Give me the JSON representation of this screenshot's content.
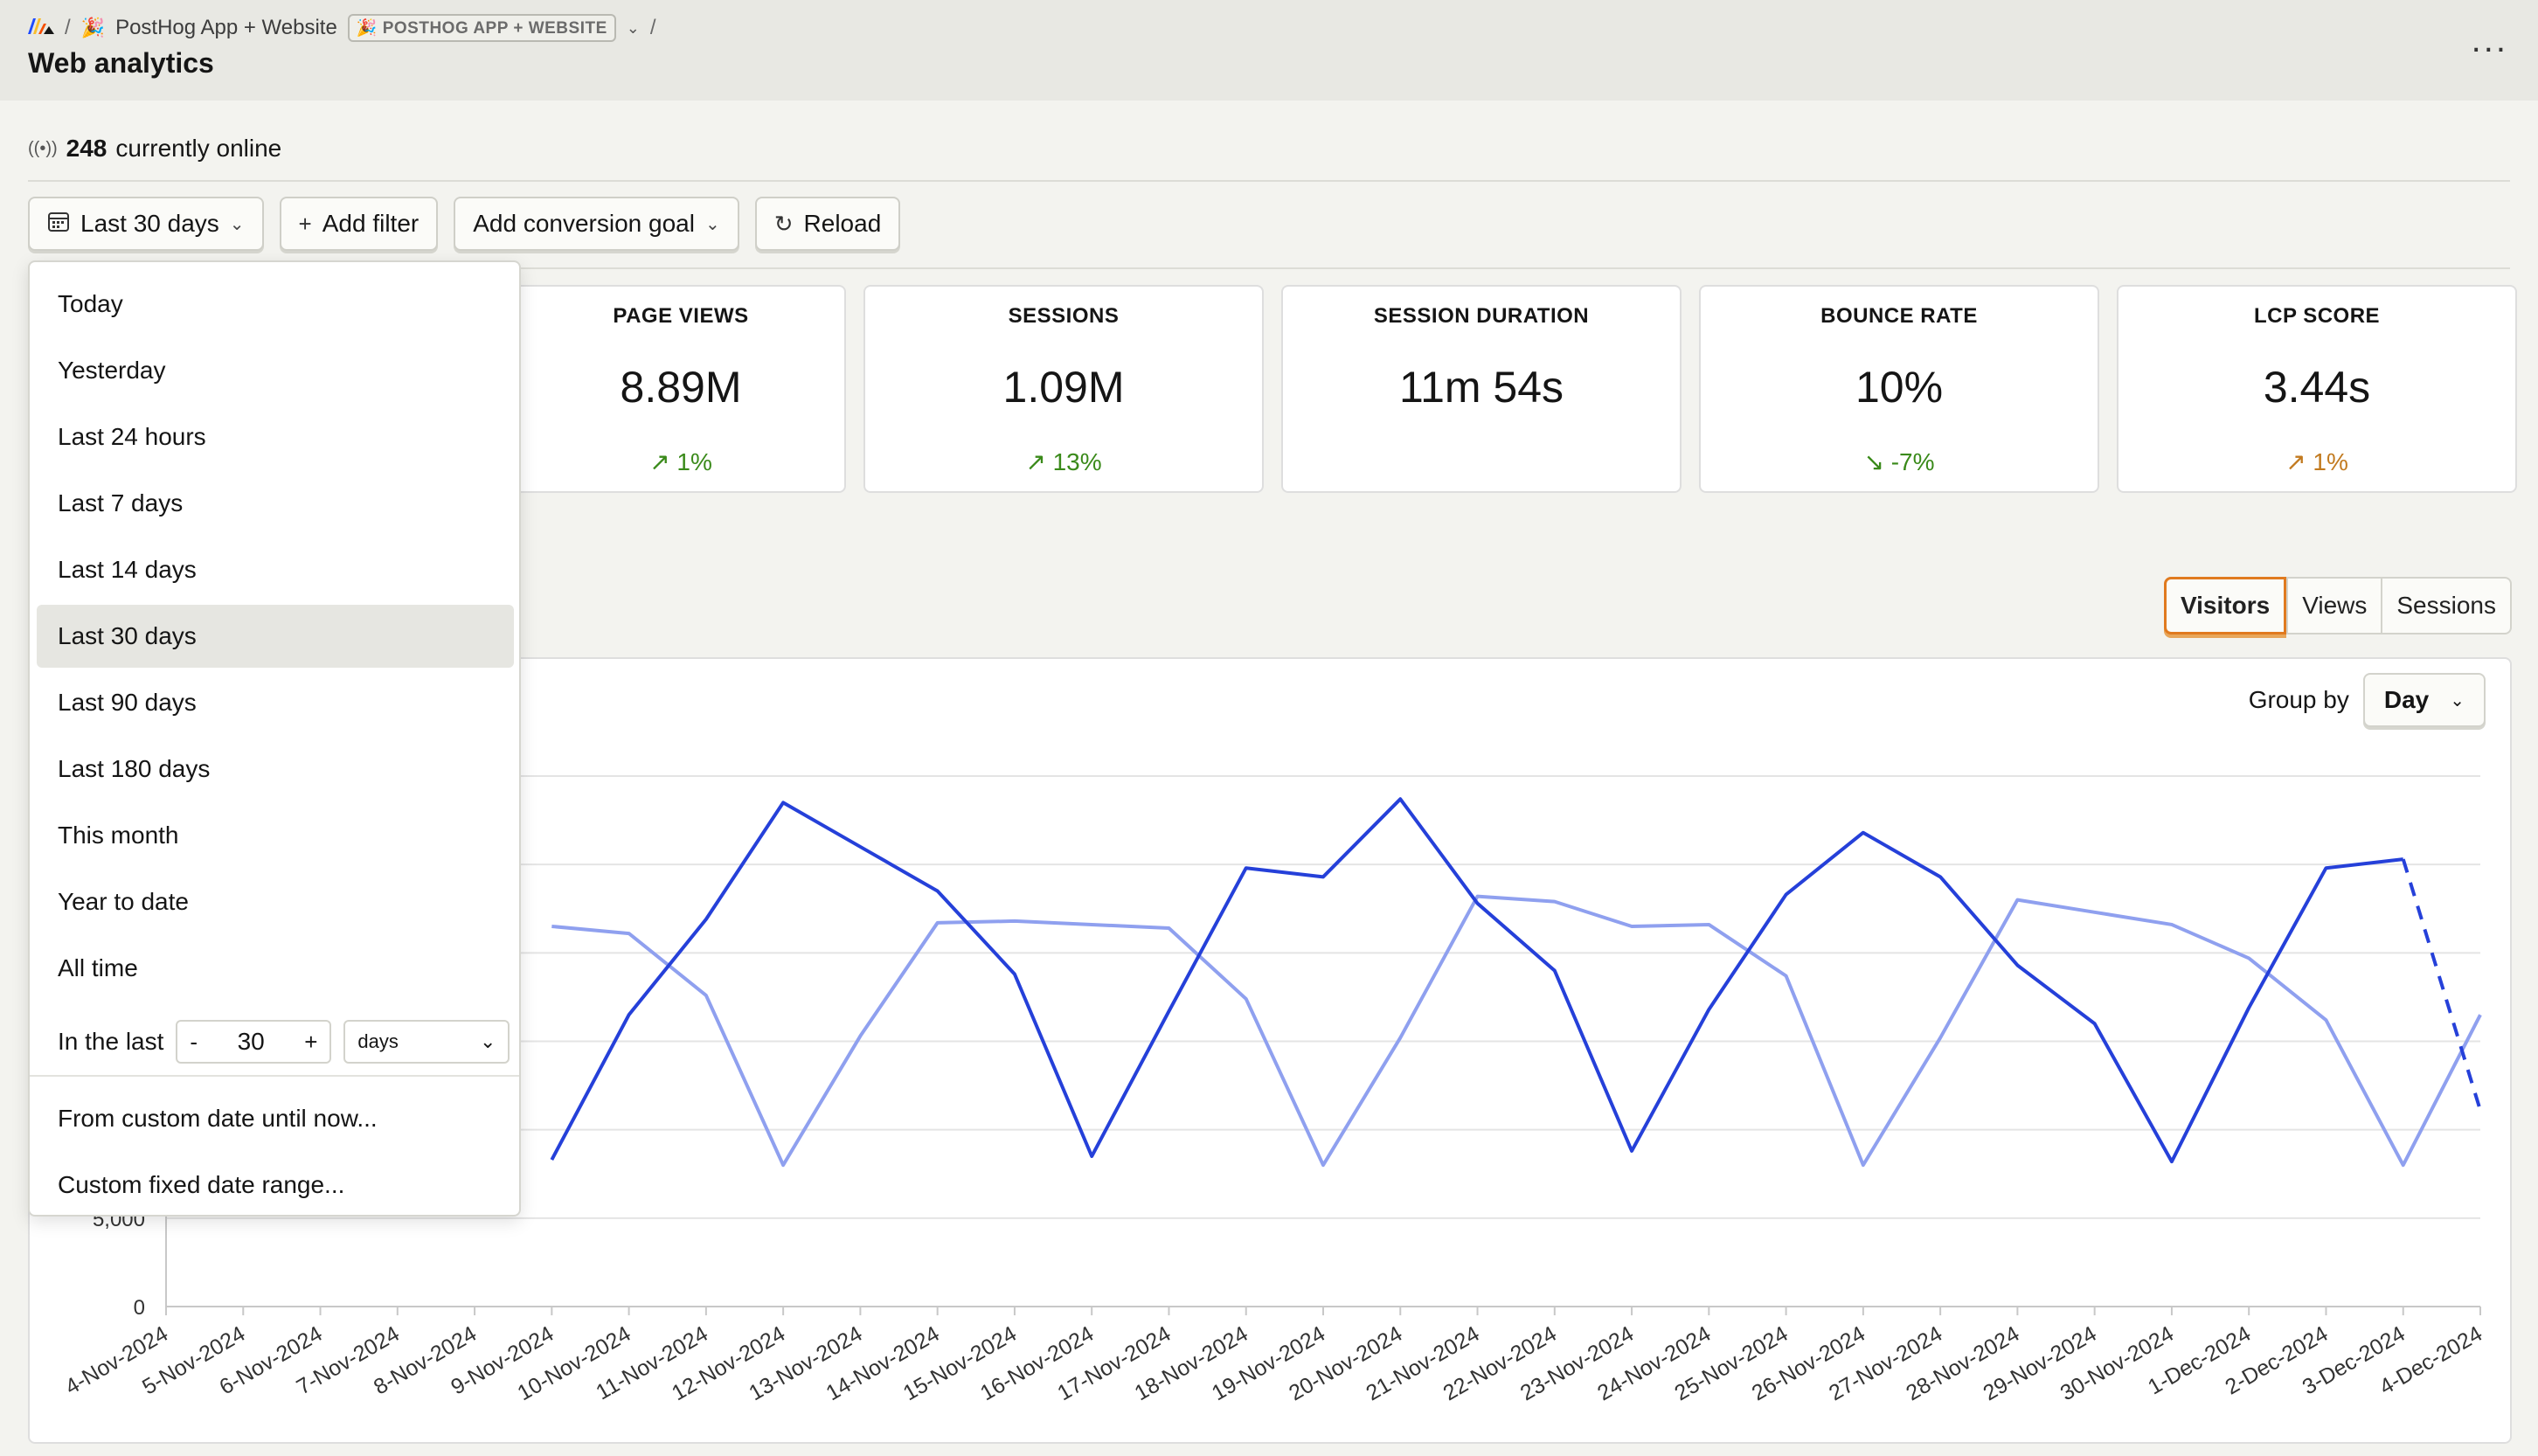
{
  "header": {
    "breadcrumb": {
      "project_name": "PostHog App + Website",
      "project_badge": "POSTHOG APP + WEBSITE",
      "separator": "/"
    },
    "page_title": "Web analytics",
    "more_label": "..."
  },
  "online": {
    "count": "248",
    "label": "currently online"
  },
  "toolbar": {
    "date_label": "Last 30 days",
    "add_filter_label": "Add filter",
    "conversion_label": "Add conversion goal",
    "reload_label": "Reload"
  },
  "kpis": [
    {
      "label": "PAGE VIEWS",
      "value": "8.89M",
      "change": "1%",
      "trend": "up"
    },
    {
      "label": "SESSIONS",
      "value": "1.09M",
      "change": "13%",
      "trend": "up"
    },
    {
      "label": "SESSION DURATION",
      "value": "11m 54s",
      "change": "",
      "trend": "none"
    },
    {
      "label": "BOUNCE RATE",
      "value": "10%",
      "change": "-7%",
      "trend": "down"
    },
    {
      "label": "LCP SCORE",
      "value": "3.44s",
      "change": "1%",
      "trend": "up"
    }
  ],
  "chart_tabs": {
    "visitors": "Visitors",
    "views": "Views",
    "sessions": "Sessions",
    "active": "Visitors"
  },
  "group_by": {
    "label": "Group by",
    "value": "Day"
  },
  "date_dropdown": {
    "options": [
      "Today",
      "Yesterday",
      "Last 24 hours",
      "Last 7 days",
      "Last 14 days",
      "Last 30 days",
      "Last 90 days",
      "Last 180 days",
      "This month",
      "Year to date",
      "All time"
    ],
    "selected": "Last 30 days",
    "in_last": {
      "label": "In the last",
      "minus": "-",
      "plus": "+",
      "value": "30",
      "unit": "days"
    },
    "custom_options": [
      "From custom date until now...",
      "Custom fixed date range..."
    ]
  },
  "colors": {
    "accent": "#e07a1f",
    "current_series": "#2540d9",
    "previous_series": "#8fa0ef",
    "positive": "#3a8a1a",
    "warning": "#c27a1f"
  },
  "chart_data": {
    "type": "line",
    "x": [
      "4-Nov-2024",
      "5-Nov-2024",
      "6-Nov-2024",
      "7-Nov-2024",
      "8-Nov-2024",
      "9-Nov-2024",
      "10-Nov-2024",
      "11-Nov-2024",
      "12-Nov-2024",
      "13-Nov-2024",
      "14-Nov-2024",
      "15-Nov-2024",
      "16-Nov-2024",
      "17-Nov-2024",
      "18-Nov-2024",
      "19-Nov-2024",
      "20-Nov-2024",
      "21-Nov-2024",
      "22-Nov-2024",
      "23-Nov-2024",
      "24-Nov-2024",
      "25-Nov-2024",
      "26-Nov-2024",
      "27-Nov-2024",
      "28-Nov-2024",
      "29-Nov-2024",
      "30-Nov-2024",
      "1-Dec-2024",
      "2-Dec-2024",
      "3-Dec-2024",
      "4-Dec-2024"
    ],
    "y_visible_ticks": [
      "0",
      "5,000"
    ],
    "ylim": [
      0,
      30000
    ],
    "grid": true,
    "series": [
      {
        "values": [
          null,
          null,
          null,
          null,
          null,
          8300,
          16500,
          21900,
          28500,
          26000,
          23500,
          18800,
          8500,
          16700,
          24800,
          24300,
          28700,
          22800,
          19000,
          8800,
          16800,
          23300,
          26800,
          24300,
          19300,
          16000,
          8200,
          16900,
          24800,
          25300,
          11100
        ],
        "dashed_last_segment": true
      },
      {
        "values": [
          null,
          null,
          null,
          null,
          null,
          21500,
          21100,
          17600,
          8000,
          15300,
          21700,
          21800,
          21600,
          21400,
          17400,
          8000,
          15200,
          23200,
          22900,
          21500,
          21600,
          18700,
          8000,
          15200,
          23000,
          22300,
          21600,
          19700,
          16200,
          8000,
          16500
        ]
      }
    ]
  }
}
